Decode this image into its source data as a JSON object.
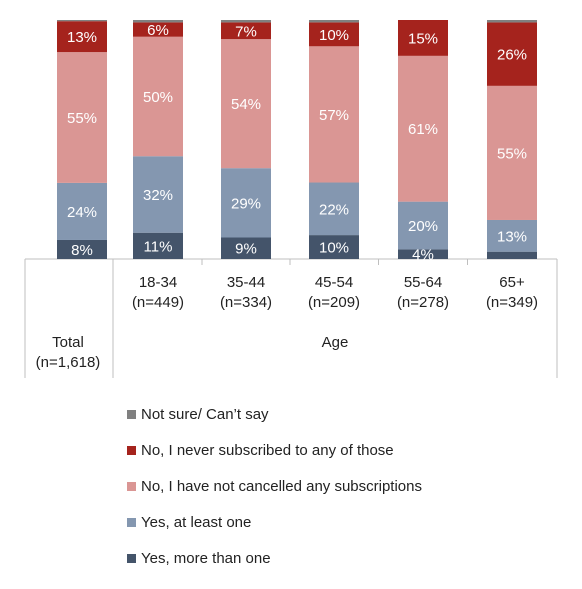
{
  "chart_data": {
    "type": "bar",
    "stacked": true,
    "percent": true,
    "categories": [
      "Total\n(n=1,618)",
      "18-34\n(n=449)",
      "35-44\n(n=334)",
      "45-54\n(n=209)",
      "55-64\n(n=278)",
      "65+\n(n=349)"
    ],
    "group_label": "Age",
    "series": [
      {
        "name": "Yes, more than one",
        "color": "#44546A",
        "values": [
          8,
          11,
          9,
          10,
          4,
          3
        ],
        "labels": [
          "8%",
          "11%",
          "9%",
          "10%",
          "4%",
          ""
        ]
      },
      {
        "name": "Yes, at least one",
        "color": "#8497B0",
        "values": [
          24,
          32,
          29,
          22,
          20,
          13
        ],
        "labels": [
          "24%",
          "32%",
          "29%",
          "22%",
          "20%",
          "13%"
        ]
      },
      {
        "name": "No, I have not cancelled any subscriptions",
        "color": "#DA9694",
        "values": [
          55,
          50,
          54,
          57,
          61,
          55
        ],
        "labels": [
          "55%",
          "50%",
          "54%",
          "57%",
          "61%",
          "55%"
        ]
      },
      {
        "name": "No, I never subscribed to any of those",
        "color": "#A5231D",
        "values": [
          13,
          6,
          7,
          10,
          15,
          26
        ],
        "labels": [
          "13%",
          "6%",
          "7%",
          "10%",
          "15%",
          "26%"
        ]
      },
      {
        "name": "Not sure/ Can’t say",
        "color": "#808080",
        "values": [
          0.5,
          1,
          1,
          1,
          0,
          1
        ],
        "labels": [
          "",
          "",
          "",
          "",
          "",
          ""
        ]
      }
    ],
    "legend_position": "bottom",
    "legend_order": [
      "Not sure/ Can’t say",
      "No, I never subscribed to any of those",
      "No, I have not cancelled any subscriptions",
      "Yes, at least one",
      "Yes, more than one"
    ],
    "grid": false
  }
}
